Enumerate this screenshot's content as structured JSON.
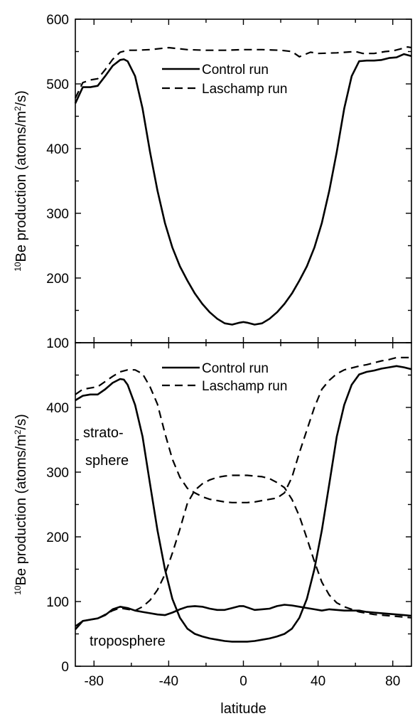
{
  "chart_data": [
    {
      "type": "line",
      "panel": "top",
      "xlim": [
        -90,
        90
      ],
      "ylim": [
        100,
        600
      ],
      "x_ticks": [],
      "y_ticks": [
        100,
        200,
        300,
        400,
        500,
        600
      ],
      "ylabel": {
        "sup": "10",
        "main": "Be production (atoms/m",
        "sup2": "2",
        "end": "/s)"
      },
      "legend": [
        {
          "label": "Control run",
          "style": "solid"
        },
        {
          "label": "Laschamp run",
          "style": "dashed"
        }
      ],
      "annotations": [],
      "series": [
        {
          "name": "Control run",
          "style": "solid",
          "x": [
            -90,
            -86,
            -82,
            -78,
            -74,
            -70,
            -66,
            -64,
            -62,
            -58,
            -54,
            -50,
            -46,
            -42,
            -38,
            -34,
            -30,
            -26,
            -22,
            -18,
            -14,
            -10,
            -6,
            -2,
            0,
            2,
            6,
            10,
            14,
            18,
            22,
            26,
            30,
            34,
            38,
            42,
            46,
            50,
            54,
            58,
            62,
            66,
            70,
            74,
            78,
            82,
            86,
            90
          ],
          "y": [
            470,
            495,
            495,
            497,
            512,
            528,
            537,
            538,
            535,
            512,
            462,
            395,
            335,
            285,
            247,
            218,
            196,
            176,
            160,
            147,
            137,
            130,
            128,
            131,
            132,
            131,
            128,
            130,
            137,
            147,
            160,
            176,
            196,
            218,
            247,
            285,
            335,
            395,
            462,
            512,
            535,
            536,
            536,
            537,
            540,
            541,
            546,
            543
          ]
        },
        {
          "name": "Laschamp run",
          "style": "dashed",
          "x": [
            -90,
            -86,
            -82,
            -78,
            -74,
            -70,
            -66,
            -62,
            -58,
            -50,
            -40,
            -30,
            -20,
            -10,
            0,
            10,
            20,
            26,
            30,
            36,
            40,
            50,
            60,
            64,
            70,
            76,
            80,
            84,
            88,
            90
          ],
          "y": [
            478,
            502,
            506,
            508,
            522,
            538,
            549,
            552,
            552,
            553,
            556,
            553,
            552,
            552,
            553,
            553,
            552,
            550,
            542,
            549,
            547,
            548,
            550,
            547,
            547,
            550,
            551,
            554,
            557,
            556
          ]
        }
      ]
    },
    {
      "type": "line",
      "panel": "bottom",
      "xlim": [
        -90,
        90
      ],
      "ylim": [
        0,
        500
      ],
      "x_ticks": [
        -80,
        -40,
        0,
        40,
        80
      ],
      "y_ticks": [
        0,
        100,
        200,
        300,
        400
      ],
      "xlabel": "latitude",
      "ylabel": {
        "sup": "10",
        "main": "Be production (atoms/m",
        "sup2": "2",
        "end": "/s)"
      },
      "legend": [
        {
          "label": "Control run",
          "style": "solid"
        },
        {
          "label": "Laschamp run",
          "style": "dashed"
        }
      ],
      "annotations": [
        "strato-",
        "sphere",
        "troposphere"
      ],
      "series": [
        {
          "name": "Control run (stratosphere)",
          "style": "solid",
          "x": [
            -90,
            -86,
            -82,
            -78,
            -74,
            -70,
            -66,
            -64,
            -62,
            -58,
            -54,
            -50,
            -46,
            -42,
            -38,
            -34,
            -30,
            -26,
            -22,
            -18,
            -14,
            -10,
            -6,
            -2,
            0,
            2,
            6,
            10,
            14,
            18,
            22,
            26,
            30,
            34,
            38,
            42,
            46,
            50,
            54,
            58,
            62,
            66,
            70,
            74,
            78,
            82,
            86,
            90
          ],
          "y": [
            411,
            418,
            420,
            420,
            428,
            438,
            444,
            443,
            435,
            404,
            355,
            282,
            210,
            150,
            104,
            75,
            58,
            50,
            46,
            43,
            41,
            39,
            38,
            38,
            38,
            38,
            39,
            41,
            43,
            46,
            50,
            58,
            75,
            104,
            150,
            210,
            282,
            355,
            404,
            435,
            451,
            455,
            457,
            460,
            462,
            464,
            462,
            459
          ]
        },
        {
          "name": "Laschamp run (stratosphere)",
          "style": "dashed",
          "x": [
            -90,
            -86,
            -82,
            -78,
            -74,
            -70,
            -66,
            -62,
            -58,
            -54,
            -50,
            -46,
            -42,
            -38,
            -34,
            -30,
            -26,
            -22,
            -18,
            -14,
            -10,
            -6,
            -2,
            0,
            2,
            6,
            10,
            14,
            18,
            22,
            26,
            30,
            34,
            38,
            42,
            46,
            50,
            54,
            58,
            62,
            66,
            70,
            74,
            78,
            82,
            86,
            90
          ],
          "y": [
            420,
            428,
            430,
            432,
            440,
            448,
            455,
            458,
            458,
            452,
            432,
            405,
            360,
            320,
            292,
            275,
            268,
            262,
            258,
            256,
            254,
            253,
            253,
            253,
            253,
            254,
            256,
            258,
            260,
            268,
            292,
            330,
            365,
            400,
            428,
            442,
            452,
            458,
            461,
            464,
            466,
            469,
            472,
            474,
            477,
            477,
            477
          ]
        },
        {
          "name": "Control run (troposphere)",
          "style": "solid",
          "x": [
            -90,
            -86,
            -82,
            -78,
            -74,
            -70,
            -66,
            -62,
            -58,
            -54,
            -50,
            -46,
            -42,
            -38,
            -34,
            -30,
            -26,
            -22,
            -18,
            -14,
            -10,
            -6,
            -2,
            0,
            2,
            6,
            10,
            14,
            18,
            22,
            26,
            30,
            34,
            38,
            42,
            46,
            50,
            54,
            58,
            62,
            66,
            70,
            74,
            78,
            82,
            86,
            90
          ],
          "y": [
            57,
            70,
            72,
            74,
            79,
            88,
            92,
            90,
            86,
            84,
            82,
            80,
            79,
            83,
            88,
            92,
            93,
            92,
            89,
            87,
            87,
            90,
            93,
            93,
            91,
            87,
            88,
            89,
            93,
            95,
            94,
            92,
            90,
            88,
            86,
            88,
            87,
            86,
            86,
            86,
            84,
            83,
            82,
            81,
            80,
            79,
            78
          ]
        },
        {
          "name": "Laschamp run (troposphere)",
          "style": "dashed",
          "x": [
            -90,
            -86,
            -82,
            -78,
            -74,
            -70,
            -66,
            -62,
            -58,
            -54,
            -50,
            -46,
            -42,
            -38,
            -34,
            -30,
            -26,
            -22,
            -18,
            -14,
            -10,
            -6,
            -2,
            0,
            2,
            6,
            10,
            14,
            18,
            22,
            26,
            30,
            34,
            38,
            42,
            46,
            50,
            54,
            58,
            62,
            66,
            70,
            74,
            78,
            82,
            86,
            90
          ],
          "y": [
            62,
            70,
            72,
            74,
            80,
            86,
            90,
            88,
            86,
            92,
            102,
            118,
            142,
            175,
            212,
            252,
            272,
            282,
            288,
            292,
            294,
            295,
            295,
            295,
            295,
            294,
            293,
            290,
            284,
            276,
            258,
            232,
            198,
            162,
            130,
            110,
            98,
            92,
            88,
            84,
            82,
            80,
            79,
            78,
            77,
            76,
            75
          ]
        }
      ]
    }
  ]
}
